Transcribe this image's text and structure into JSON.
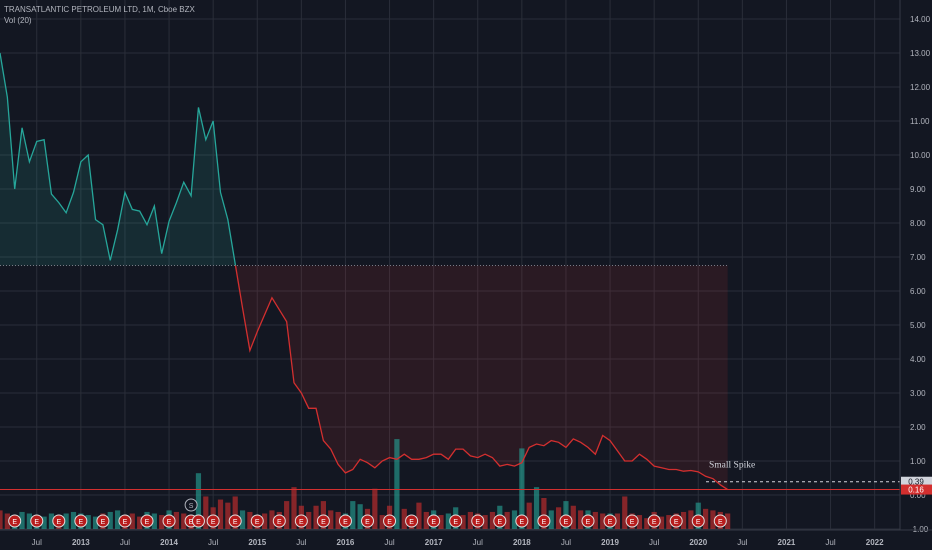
{
  "header": {
    "symbol_line": "TRANSATLANTIC PETROLEUM LTD, 1M, Cboe BZX",
    "volume_line": "Vol (20)"
  },
  "annotation": {
    "text": "Small Spike"
  },
  "colors": {
    "background": "#131722",
    "up": "#26a69a",
    "down": "#d32f2f",
    "grid": "#2a2e39",
    "axis_text": "#b2b5be",
    "marker_red": "#b71c1c"
  },
  "chart_data": {
    "type": "area",
    "title": "TRANSATLANTIC PETROLEUM LTD, 1M, Cboe BZX",
    "y_axis": {
      "side": "right",
      "ylim": [
        -1,
        14
      ],
      "ticks": [
        -1,
        0,
        1,
        2,
        3,
        4,
        5,
        6,
        7,
        8,
        9,
        10,
        11,
        12,
        13,
        14
      ],
      "tick_labels": [
        "-1.00",
        "0.00",
        "1.00",
        "2.00",
        "3.00",
        "4.00",
        "5.00",
        "6.00",
        "7.00",
        "8.00",
        "9.00",
        "10.00",
        "11.00",
        "12.00",
        "13.00",
        "14.00"
      ]
    },
    "x_axis": {
      "labels": [
        {
          "t": "2012-07",
          "label": "Jul"
        },
        {
          "t": "2013-01",
          "label": "2013"
        },
        {
          "t": "2013-07",
          "label": "Jul"
        },
        {
          "t": "2014-01",
          "label": "2014"
        },
        {
          "t": "2014-07",
          "label": "Jul"
        },
        {
          "t": "2015-01",
          "label": "2015"
        },
        {
          "t": "2015-07",
          "label": "Jul"
        },
        {
          "t": "2016-01",
          "label": "2016"
        },
        {
          "t": "2016-07",
          "label": "Jul"
        },
        {
          "t": "2017-01",
          "label": "2017"
        },
        {
          "t": "2017-07",
          "label": "Jul"
        },
        {
          "t": "2018-01",
          "label": "2018"
        },
        {
          "t": "2018-07",
          "label": "Jul"
        },
        {
          "t": "2019-01",
          "label": "2019"
        },
        {
          "t": "2019-07",
          "label": "Jul"
        },
        {
          "t": "2020-01",
          "label": "2020"
        },
        {
          "t": "2020-07",
          "label": "Jul"
        },
        {
          "t": "2021-01",
          "label": "2021"
        },
        {
          "t": "2021-07",
          "label": "Jul"
        },
        {
          "t": "2022-01",
          "label": "2022"
        }
      ]
    },
    "baseline_price": 6.75,
    "price": [
      [
        "2012-02",
        13.0
      ],
      [
        "2012-03",
        11.7
      ],
      [
        "2012-04",
        9.0
      ],
      [
        "2012-05",
        10.8
      ],
      [
        "2012-06",
        9.8
      ],
      [
        "2012-07",
        10.4
      ],
      [
        "2012-08",
        10.45
      ],
      [
        "2012-09",
        8.85
      ],
      [
        "2012-10",
        8.6
      ],
      [
        "2012-11",
        8.3
      ],
      [
        "2012-12",
        8.9
      ],
      [
        "2012-13",
        9.8
      ],
      [
        "2013-02",
        10.0
      ],
      [
        "2013-03",
        8.1
      ],
      [
        "2013-04",
        7.95
      ],
      [
        "2013-05",
        6.9
      ],
      [
        "2013-06",
        7.8
      ],
      [
        "2013-07",
        8.9
      ],
      [
        "2013-08",
        8.4
      ],
      [
        "2013-09",
        8.35
      ],
      [
        "2013-10",
        7.95
      ],
      [
        "2013-11",
        8.5
      ],
      [
        "2013-12",
        7.1
      ],
      [
        "2014-01",
        8.05
      ],
      [
        "2014-02",
        8.6
      ],
      [
        "2014-03",
        9.2
      ],
      [
        "2014-04",
        8.8
      ],
      [
        "2014-05",
        11.4
      ],
      [
        "2014-06",
        10.45
      ],
      [
        "2014-07",
        11.0
      ],
      [
        "2014-08",
        8.9
      ],
      [
        "2014-09",
        8.1
      ],
      [
        "2014-10",
        6.8
      ],
      [
        "2014-11",
        5.5
      ],
      [
        "2014-12",
        4.25
      ],
      [
        "2015-01",
        4.8
      ],
      [
        "2015-02",
        5.3
      ],
      [
        "2015-03",
        5.8
      ],
      [
        "2015-04",
        5.45
      ],
      [
        "2015-05",
        5.1
      ],
      [
        "2015-06",
        3.3
      ],
      [
        "2015-07",
        3.0
      ],
      [
        "2015-08",
        2.55
      ],
      [
        "2015-09",
        2.55
      ],
      [
        "2015-10",
        1.6
      ],
      [
        "2015-11",
        1.35
      ],
      [
        "2015-12",
        0.9
      ],
      [
        "2016-01",
        0.65
      ],
      [
        "2016-02",
        0.75
      ],
      [
        "2016-03",
        1.05
      ],
      [
        "2016-04",
        0.95
      ],
      [
        "2016-05",
        0.8
      ],
      [
        "2016-06",
        1.0
      ],
      [
        "2016-07",
        1.1
      ],
      [
        "2016-08",
        1.05
      ],
      [
        "2016-09",
        1.2
      ],
      [
        "2016-10",
        1.05
      ],
      [
        "2016-11",
        1.05
      ],
      [
        "2016-12",
        1.1
      ],
      [
        "2017-01",
        1.2
      ],
      [
        "2017-02",
        1.2
      ],
      [
        "2017-03",
        1.05
      ],
      [
        "2017-04",
        1.35
      ],
      [
        "2017-05",
        1.35
      ],
      [
        "2017-06",
        1.15
      ],
      [
        "2017-07",
        1.1
      ],
      [
        "2017-08",
        1.2
      ],
      [
        "2017-09",
        1.1
      ],
      [
        "2017-10",
        0.85
      ],
      [
        "2017-11",
        0.9
      ],
      [
        "2017-12",
        0.85
      ],
      [
        "2018-01",
        0.95
      ],
      [
        "2018-02",
        1.4
      ],
      [
        "2018-03",
        1.5
      ],
      [
        "2018-04",
        1.45
      ],
      [
        "2018-05",
        1.6
      ],
      [
        "2018-06",
        1.55
      ],
      [
        "2018-07",
        1.4
      ],
      [
        "2018-08",
        1.65
      ],
      [
        "2018-09",
        1.55
      ],
      [
        "2018-10",
        1.4
      ],
      [
        "2018-11",
        1.2
      ],
      [
        "2018-12",
        1.75
      ],
      [
        "2019-01",
        1.6
      ],
      [
        "2019-02",
        1.3
      ],
      [
        "2019-03",
        1.0
      ],
      [
        "2019-04",
        1.0
      ],
      [
        "2019-05",
        1.2
      ],
      [
        "2019-06",
        1.05
      ],
      [
        "2019-07",
        0.85
      ],
      [
        "2019-08",
        0.8
      ],
      [
        "2019-09",
        0.75
      ],
      [
        "2019-10",
        0.75
      ],
      [
        "2019-11",
        0.7
      ],
      [
        "2019-12",
        0.72
      ],
      [
        "2020-01",
        0.68
      ],
      [
        "2020-02",
        0.55
      ],
      [
        "2020-03",
        0.48
      ],
      [
        "2020-04",
        0.3
      ],
      [
        "2020-05",
        0.16
      ]
    ],
    "volume": [
      [
        0.6,
        0
      ],
      [
        0.5,
        0
      ],
      [
        0.45,
        1
      ],
      [
        0.55,
        1
      ],
      [
        0.5,
        1
      ],
      [
        0.45,
        1
      ],
      [
        0.4,
        1
      ],
      [
        0.5,
        1
      ],
      [
        0.45,
        0
      ],
      [
        0.5,
        1
      ],
      [
        0.55,
        1
      ],
      [
        0.5,
        1
      ],
      [
        0.45,
        1
      ],
      [
        0.4,
        1
      ],
      [
        0.5,
        0
      ],
      [
        0.55,
        1
      ],
      [
        0.6,
        1
      ],
      [
        0.45,
        0
      ],
      [
        0.5,
        0
      ],
      [
        0.4,
        0
      ],
      [
        0.55,
        1
      ],
      [
        0.5,
        1
      ],
      [
        0.45,
        0
      ],
      [
        0.6,
        1
      ],
      [
        0.55,
        0
      ],
      [
        0.5,
        0
      ],
      [
        0.45,
        0
      ],
      [
        1.8,
        1
      ],
      [
        1.05,
        0
      ],
      [
        0.7,
        0
      ],
      [
        0.95,
        0
      ],
      [
        0.85,
        0
      ],
      [
        1.05,
        0
      ],
      [
        0.6,
        1
      ],
      [
        0.55,
        0
      ],
      [
        0.45,
        0
      ],
      [
        0.5,
        0
      ],
      [
        0.6,
        0
      ],
      [
        0.55,
        0
      ],
      [
        0.9,
        0
      ],
      [
        1.35,
        0
      ],
      [
        0.75,
        0
      ],
      [
        0.55,
        0
      ],
      [
        0.75,
        0
      ],
      [
        0.9,
        0
      ],
      [
        0.6,
        0
      ],
      [
        0.55,
        0
      ],
      [
        0.5,
        1
      ],
      [
        0.9,
        1
      ],
      [
        0.8,
        1
      ],
      [
        0.65,
        0
      ],
      [
        1.3,
        0
      ],
      [
        0.45,
        0
      ],
      [
        0.75,
        0
      ],
      [
        2.9,
        1
      ],
      [
        0.65,
        0
      ],
      [
        0.45,
        0
      ],
      [
        0.85,
        0
      ],
      [
        0.55,
        0
      ],
      [
        0.6,
        1
      ],
      [
        0.45,
        0
      ],
      [
        0.5,
        1
      ],
      [
        0.7,
        1
      ],
      [
        0.45,
        0
      ],
      [
        0.55,
        0
      ],
      [
        0.5,
        0
      ],
      [
        0.45,
        0
      ],
      [
        0.55,
        0
      ],
      [
        0.75,
        1
      ],
      [
        0.55,
        0
      ],
      [
        0.6,
        1
      ],
      [
        2.6,
        1
      ],
      [
        0.85,
        0
      ],
      [
        1.35,
        1
      ],
      [
        1.0,
        0
      ],
      [
        0.6,
        1
      ],
      [
        0.7,
        0
      ],
      [
        0.9,
        1
      ],
      [
        0.75,
        0
      ],
      [
        0.6,
        0
      ],
      [
        0.6,
        1
      ],
      [
        0.55,
        0
      ],
      [
        0.5,
        0
      ],
      [
        0.5,
        1
      ],
      [
        0.5,
        0
      ],
      [
        1.05,
        0
      ],
      [
        0.5,
        0
      ],
      [
        0.45,
        0
      ],
      [
        0.35,
        0
      ],
      [
        0.55,
        0
      ],
      [
        0.4,
        0
      ],
      [
        0.45,
        0
      ],
      [
        0.5,
        0
      ],
      [
        0.55,
        0
      ],
      [
        0.6,
        0
      ],
      [
        0.85,
        1
      ],
      [
        0.65,
        0
      ],
      [
        0.6,
        0
      ],
      [
        0.55,
        0
      ],
      [
        0.5,
        0
      ]
    ],
    "earnings_markers": [
      "2012-04",
      "2012-07",
      "2012-10",
      "2013-01",
      "2013-04",
      "2013-07",
      "2013-10",
      "2014-01",
      "2014-04",
      "2014-05",
      "2014-07",
      "2014-10",
      "2015-01",
      "2015-04",
      "2015-07",
      "2015-10",
      "2016-01",
      "2016-04",
      "2016-07",
      "2016-10",
      "2017-01",
      "2017-04",
      "2017-07",
      "2017-10",
      "2018-01",
      "2018-04",
      "2018-07",
      "2018-10",
      "2019-01",
      "2019-04",
      "2019-07",
      "2019-10",
      "2020-01",
      "2020-04"
    ],
    "split_marker": {
      "t": "2014-04",
      "label": "S"
    },
    "markers_label": "E",
    "price_labels": [
      {
        "value": 0.39,
        "text": "0.39"
      },
      {
        "value": 0.16,
        "text": "0.16"
      }
    ]
  }
}
